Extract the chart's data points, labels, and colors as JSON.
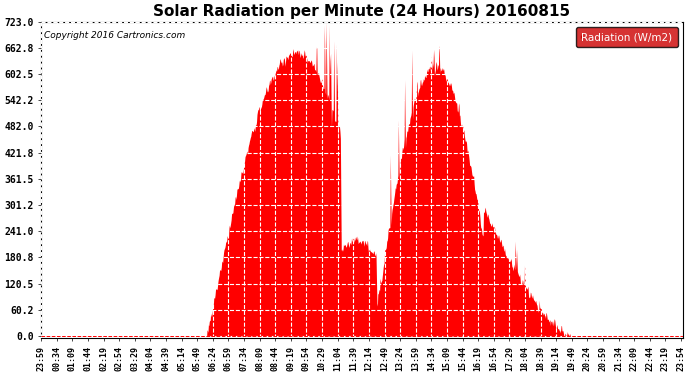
{
  "title": "Solar Radiation per Minute (24 Hours) 20160815",
  "copyright": "Copyright 2016 Cartronics.com",
  "legend_label": "Radiation (W/m2)",
  "fill_color": "#FF0000",
  "line_color": "#CC0000",
  "legend_bg": "#CC0000",
  "legend_text_color": "#FFFFFF",
  "background_color": "#FFFFFF",
  "plot_bg": "#FFFFFF",
  "grid_color": "#AAAAAA",
  "grid_linestyle": "--",
  "yticks": [
    0.0,
    60.2,
    120.5,
    180.8,
    241.0,
    301.2,
    361.5,
    421.8,
    482.0,
    542.2,
    602.5,
    662.8,
    723.0
  ],
  "ylim": [
    -5,
    723.0
  ],
  "xlabel_rotation": 90
}
